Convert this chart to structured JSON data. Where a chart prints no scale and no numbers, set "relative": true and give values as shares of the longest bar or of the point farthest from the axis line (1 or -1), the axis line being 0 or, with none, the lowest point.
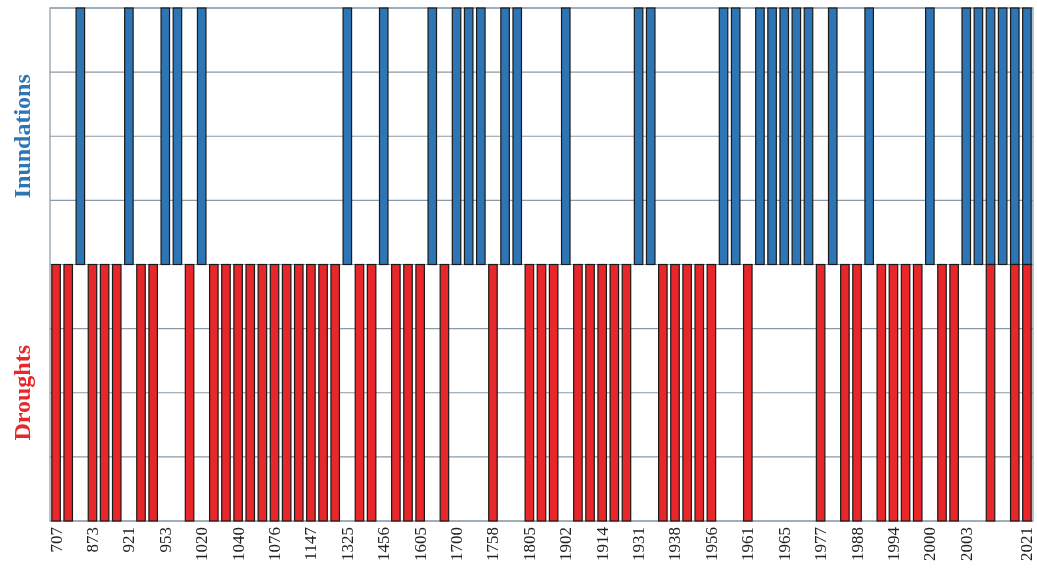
{
  "chart_data": {
    "type": "bar",
    "relative": true,
    "grid": true,
    "categories": [
      "707",
      null,
      null,
      "873",
      null,
      null,
      "921",
      null,
      null,
      "953",
      null,
      null,
      "1020",
      null,
      null,
      "1040",
      null,
      null,
      "1076",
      null,
      null,
      "1147",
      null,
      null,
      "1325",
      null,
      null,
      "1456",
      null,
      null,
      "1605",
      null,
      null,
      "1700",
      null,
      null,
      "1758",
      null,
      null,
      "1805",
      null,
      null,
      "1902",
      null,
      null,
      "1914",
      null,
      null,
      "1931",
      null,
      null,
      "1938",
      null,
      null,
      "1956",
      null,
      null,
      "1961",
      null,
      null,
      "1965",
      null,
      null,
      "1977",
      null,
      null,
      "1988",
      null,
      null,
      "1994",
      null,
      null,
      "2000",
      null,
      null,
      "2003",
      null,
      null,
      null,
      null,
      "2021"
    ],
    "series": [
      {
        "name": "Inundations",
        "color": "#2e75b6",
        "values": [
          null,
          null,
          1,
          null,
          null,
          null,
          1,
          null,
          null,
          1,
          1,
          null,
          1,
          null,
          null,
          null,
          null,
          null,
          null,
          null,
          null,
          null,
          null,
          null,
          1,
          null,
          null,
          1,
          null,
          null,
          null,
          1,
          null,
          1,
          1,
          1,
          null,
          1,
          1,
          null,
          null,
          null,
          1,
          null,
          null,
          null,
          null,
          null,
          1,
          1,
          null,
          null,
          null,
          null,
          null,
          1,
          1,
          null,
          1,
          1,
          1,
          1,
          1,
          null,
          1,
          null,
          null,
          1,
          null,
          null,
          null,
          null,
          1,
          null,
          null,
          1,
          1,
          1,
          1,
          1,
          1
        ]
      },
      {
        "name": "Droughts",
        "color": "#e8272a",
        "values": [
          -1,
          -1,
          null,
          -1,
          -1,
          -1,
          null,
          -1,
          -1,
          null,
          null,
          -1,
          null,
          -1,
          -1,
          -1,
          -1,
          -1,
          -1,
          -1,
          -1,
          -1,
          -1,
          -1,
          null,
          -1,
          -1,
          null,
          -1,
          -1,
          -1,
          null,
          -1,
          null,
          null,
          null,
          -1,
          null,
          null,
          -1,
          -1,
          -1,
          null,
          -1,
          -1,
          -1,
          -1,
          -1,
          null,
          null,
          -1,
          -1,
          -1,
          -1,
          -1,
          null,
          null,
          -1,
          null,
          null,
          null,
          null,
          null,
          -1,
          null,
          -1,
          -1,
          null,
          -1,
          -1,
          -1,
          -1,
          null,
          -1,
          -1,
          null,
          null,
          -1,
          null,
          -1,
          -1
        ]
      }
    ]
  }
}
